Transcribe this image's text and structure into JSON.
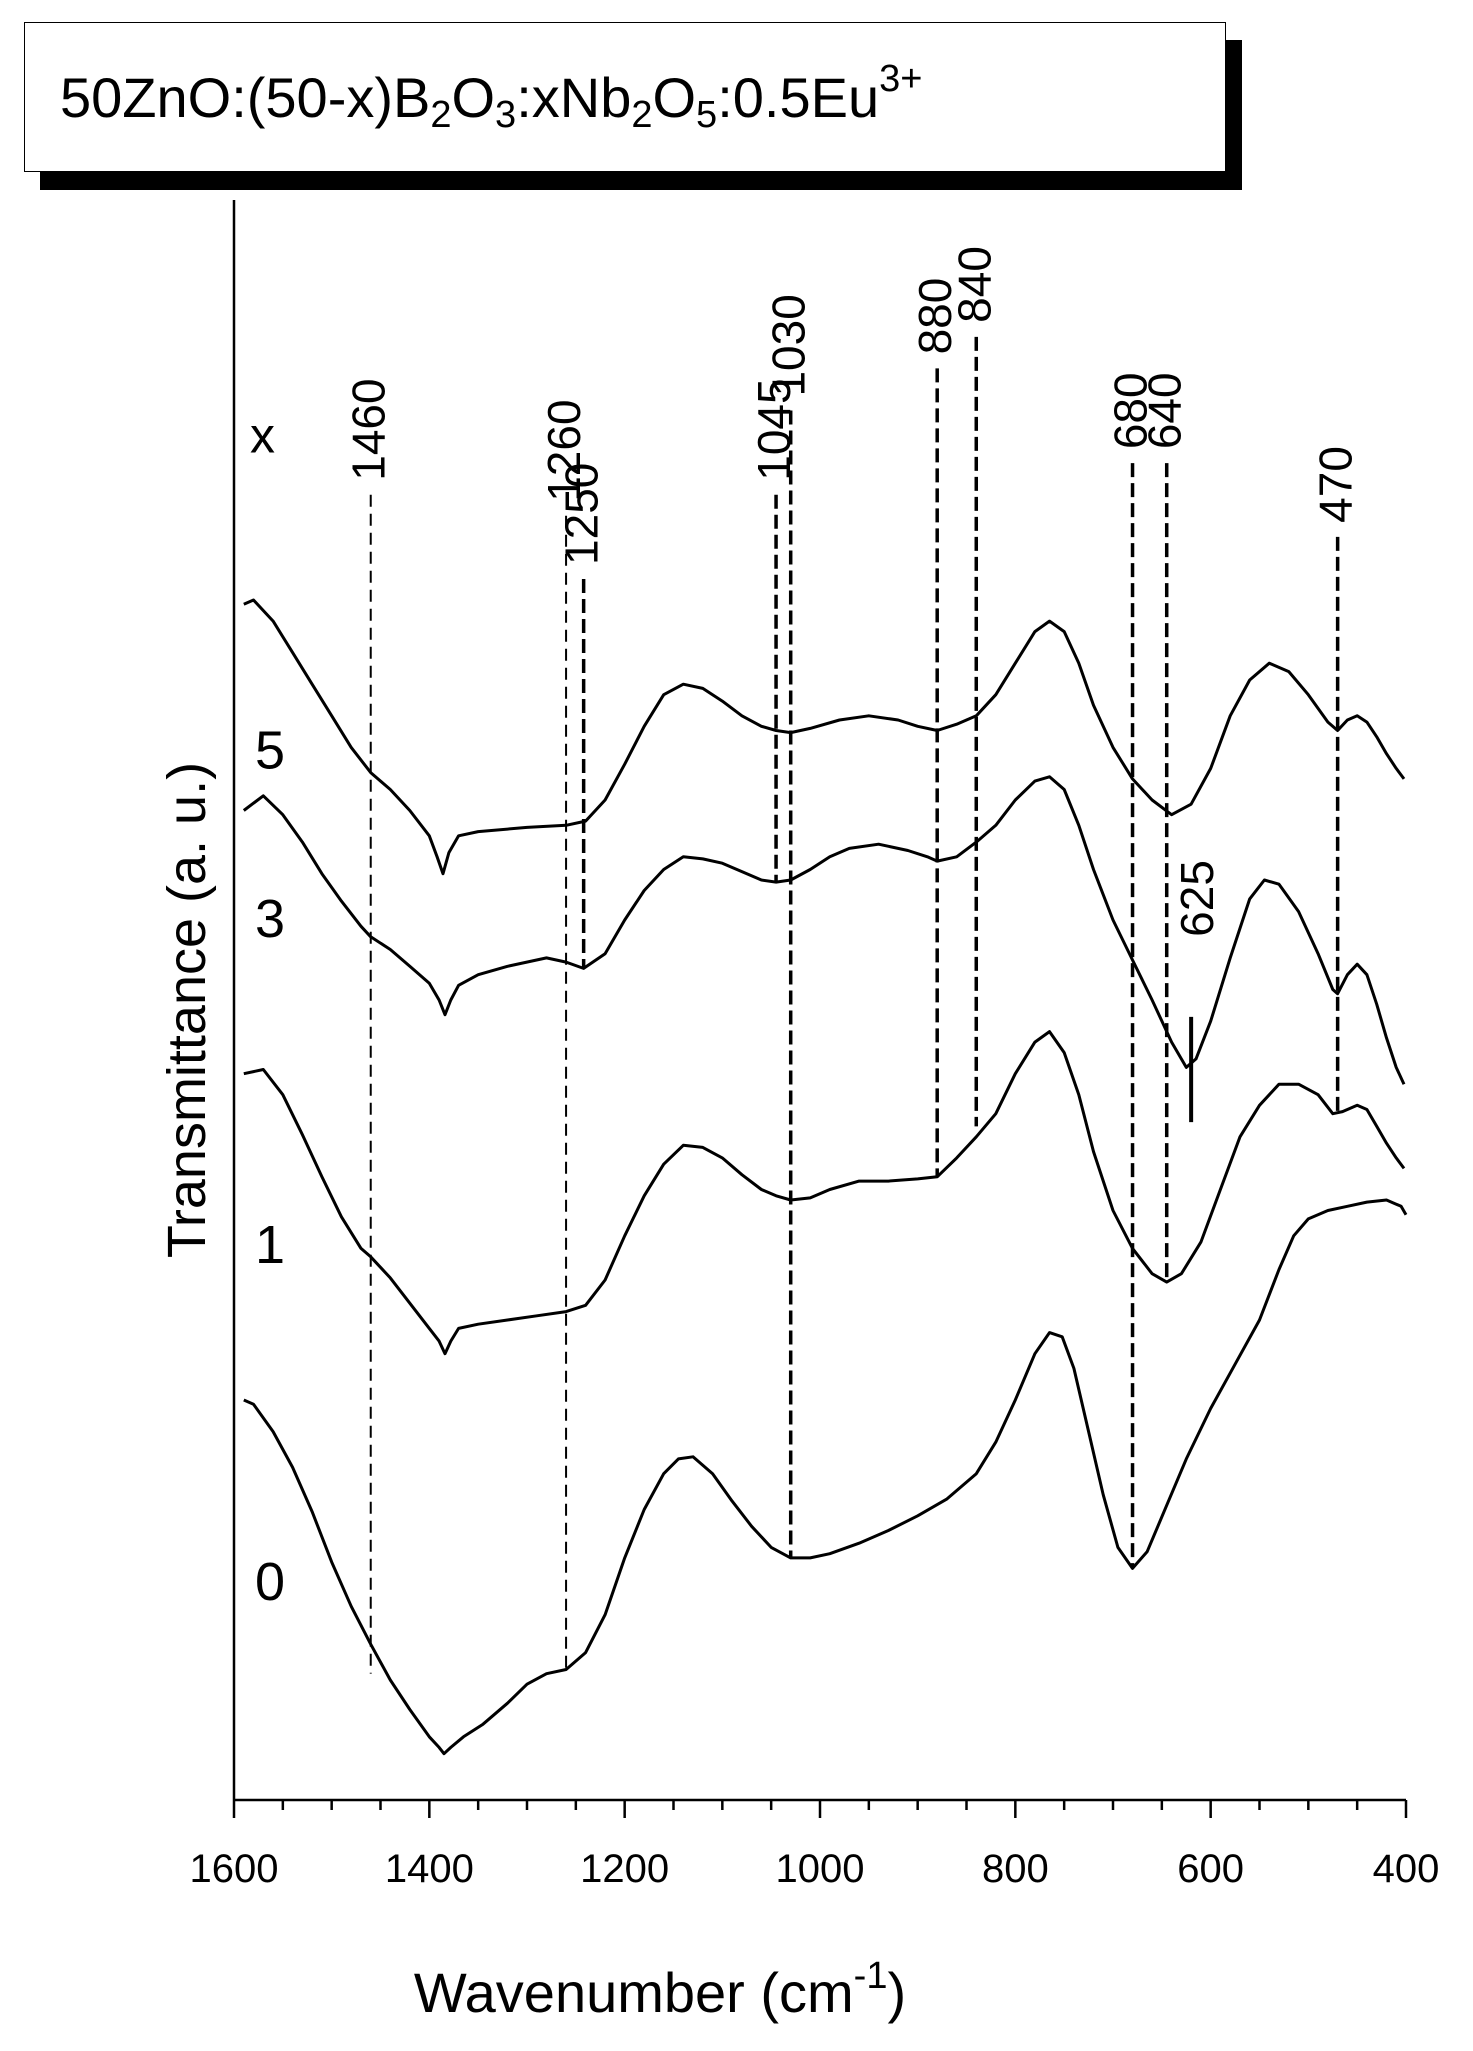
{
  "chart_data": {
    "type": "line",
    "title_parts": [
      {
        "t": "50ZnO:(50-x)B",
        "k": "n"
      },
      {
        "t": "2",
        "k": "sub"
      },
      {
        "t": "O",
        "k": "n"
      },
      {
        "t": "3",
        "k": "sub"
      },
      {
        "t": ":xNb",
        "k": "n"
      },
      {
        "t": "2",
        "k": "sub"
      },
      {
        "t": "O",
        "k": "n"
      },
      {
        "t": "5",
        "k": "sub"
      },
      {
        "t": ":0.5Eu",
        "k": "n"
      },
      {
        "t": "3+",
        "k": "sup"
      }
    ],
    "xlabel": "Wavenumber (cm",
    "xlabel_sup": "-1",
    "xlabel_close": ")",
    "ylabel": "Transmittance (a. u.)",
    "xlim": [
      1600,
      400
    ],
    "x_ticks": [
      1600,
      1400,
      1200,
      1000,
      800,
      600,
      400
    ],
    "legend_header": "x",
    "series": [
      {
        "name": "5",
        "points": [
          [
            1590,
            568
          ],
          [
            1580,
            570
          ],
          [
            1560,
            560
          ],
          [
            1540,
            545
          ],
          [
            1520,
            530
          ],
          [
            1500,
            515
          ],
          [
            1480,
            500
          ],
          [
            1460,
            488
          ],
          [
            1440,
            480
          ],
          [
            1420,
            470
          ],
          [
            1400,
            458
          ],
          [
            1392,
            448
          ],
          [
            1386,
            440
          ],
          [
            1380,
            450
          ],
          [
            1370,
            458
          ],
          [
            1350,
            460
          ],
          [
            1300,
            462
          ],
          [
            1260,
            463
          ],
          [
            1240,
            465
          ],
          [
            1220,
            475
          ],
          [
            1200,
            492
          ],
          [
            1180,
            510
          ],
          [
            1160,
            525
          ],
          [
            1140,
            530
          ],
          [
            1120,
            528
          ],
          [
            1100,
            522
          ],
          [
            1080,
            515
          ],
          [
            1060,
            510
          ],
          [
            1045,
            508
          ],
          [
            1030,
            507
          ],
          [
            1010,
            509
          ],
          [
            980,
            513
          ],
          [
            950,
            515
          ],
          [
            920,
            513
          ],
          [
            900,
            510
          ],
          [
            880,
            508
          ],
          [
            860,
            511
          ],
          [
            840,
            515
          ],
          [
            820,
            525
          ],
          [
            800,
            540
          ],
          [
            780,
            555
          ],
          [
            765,
            560
          ],
          [
            750,
            555
          ],
          [
            735,
            540
          ],
          [
            720,
            520
          ],
          [
            700,
            500
          ],
          [
            680,
            485
          ],
          [
            660,
            475
          ],
          [
            640,
            468
          ],
          [
            620,
            473
          ],
          [
            600,
            490
          ],
          [
            580,
            515
          ],
          [
            560,
            532
          ],
          [
            540,
            540
          ],
          [
            520,
            536
          ],
          [
            500,
            525
          ],
          [
            480,
            512
          ],
          [
            470,
            508
          ],
          [
            460,
            513
          ],
          [
            450,
            515
          ],
          [
            440,
            512
          ],
          [
            430,
            505
          ],
          [
            420,
            497
          ],
          [
            410,
            490
          ],
          [
            402,
            485
          ]
        ]
      },
      {
        "name": "3",
        "points": [
          [
            1590,
            470
          ],
          [
            1570,
            477
          ],
          [
            1550,
            468
          ],
          [
            1530,
            455
          ],
          [
            1510,
            440
          ],
          [
            1490,
            427
          ],
          [
            1470,
            415
          ],
          [
            1460,
            410
          ],
          [
            1440,
            404
          ],
          [
            1420,
            396
          ],
          [
            1400,
            388
          ],
          [
            1390,
            380
          ],
          [
            1384,
            373
          ],
          [
            1378,
            380
          ],
          [
            1370,
            387
          ],
          [
            1350,
            392
          ],
          [
            1320,
            396
          ],
          [
            1280,
            400
          ],
          [
            1260,
            398
          ],
          [
            1242,
            395
          ],
          [
            1220,
            402
          ],
          [
            1200,
            418
          ],
          [
            1180,
            432
          ],
          [
            1160,
            442
          ],
          [
            1140,
            448
          ],
          [
            1120,
            447
          ],
          [
            1100,
            445
          ],
          [
            1080,
            441
          ],
          [
            1060,
            437
          ],
          [
            1045,
            436
          ],
          [
            1030,
            437
          ],
          [
            1010,
            442
          ],
          [
            990,
            448
          ],
          [
            970,
            452
          ],
          [
            940,
            454
          ],
          [
            910,
            451
          ],
          [
            890,
            448
          ],
          [
            880,
            446
          ],
          [
            860,
            448
          ],
          [
            840,
            455
          ],
          [
            820,
            463
          ],
          [
            800,
            475
          ],
          [
            780,
            484
          ],
          [
            765,
            486
          ],
          [
            750,
            480
          ],
          [
            735,
            463
          ],
          [
            720,
            442
          ],
          [
            700,
            418
          ],
          [
            680,
            399
          ],
          [
            660,
            380
          ],
          [
            640,
            360
          ],
          [
            625,
            348
          ],
          [
            615,
            352
          ],
          [
            600,
            370
          ],
          [
            580,
            400
          ],
          [
            560,
            428
          ],
          [
            545,
            437
          ],
          [
            530,
            435
          ],
          [
            510,
            422
          ],
          [
            490,
            402
          ],
          [
            475,
            385
          ],
          [
            470,
            383
          ],
          [
            460,
            392
          ],
          [
            450,
            397
          ],
          [
            440,
            392
          ],
          [
            430,
            378
          ],
          [
            420,
            362
          ],
          [
            410,
            348
          ],
          [
            402,
            340
          ]
        ]
      },
      {
        "name": "1",
        "points": [
          [
            1590,
            345
          ],
          [
            1570,
            347
          ],
          [
            1550,
            335
          ],
          [
            1530,
            316
          ],
          [
            1510,
            296
          ],
          [
            1490,
            277
          ],
          [
            1470,
            262
          ],
          [
            1460,
            258
          ],
          [
            1440,
            248
          ],
          [
            1420,
            236
          ],
          [
            1400,
            224
          ],
          [
            1390,
            218
          ],
          [
            1384,
            212
          ],
          [
            1378,
            218
          ],
          [
            1370,
            224
          ],
          [
            1350,
            226
          ],
          [
            1320,
            228
          ],
          [
            1290,
            230
          ],
          [
            1260,
            232
          ],
          [
            1240,
            235
          ],
          [
            1220,
            247
          ],
          [
            1200,
            268
          ],
          [
            1180,
            287
          ],
          [
            1160,
            302
          ],
          [
            1140,
            311
          ],
          [
            1120,
            310
          ],
          [
            1100,
            305
          ],
          [
            1080,
            297
          ],
          [
            1060,
            290
          ],
          [
            1045,
            287
          ],
          [
            1030,
            285
          ],
          [
            1010,
            286
          ],
          [
            990,
            290
          ],
          [
            960,
            294
          ],
          [
            930,
            294
          ],
          [
            900,
            295
          ],
          [
            880,
            296
          ],
          [
            860,
            305
          ],
          [
            840,
            315
          ],
          [
            820,
            326
          ],
          [
            800,
            345
          ],
          [
            780,
            360
          ],
          [
            765,
            365
          ],
          [
            750,
            355
          ],
          [
            735,
            335
          ],
          [
            720,
            308
          ],
          [
            700,
            280
          ],
          [
            680,
            262
          ],
          [
            660,
            250
          ],
          [
            645,
            246
          ],
          [
            630,
            250
          ],
          [
            610,
            265
          ],
          [
            590,
            290
          ],
          [
            570,
            315
          ],
          [
            550,
            330
          ],
          [
            530,
            340
          ],
          [
            510,
            340
          ],
          [
            490,
            335
          ],
          [
            475,
            326
          ],
          [
            465,
            327
          ],
          [
            450,
            330
          ],
          [
            440,
            328
          ],
          [
            430,
            320
          ],
          [
            420,
            312
          ],
          [
            410,
            305
          ],
          [
            402,
            300
          ]
        ]
      },
      {
        "name": "0",
        "points": [
          [
            1590,
            190
          ],
          [
            1580,
            188
          ],
          [
            1560,
            175
          ],
          [
            1540,
            158
          ],
          [
            1520,
            137
          ],
          [
            1500,
            113
          ],
          [
            1480,
            92
          ],
          [
            1460,
            74
          ],
          [
            1440,
            57
          ],
          [
            1420,
            43
          ],
          [
            1400,
            30
          ],
          [
            1390,
            25
          ],
          [
            1385,
            22
          ],
          [
            1378,
            25
          ],
          [
            1365,
            30
          ],
          [
            1345,
            36
          ],
          [
            1320,
            46
          ],
          [
            1300,
            55
          ],
          [
            1280,
            60
          ],
          [
            1260,
            62
          ],
          [
            1240,
            70
          ],
          [
            1220,
            88
          ],
          [
            1200,
            115
          ],
          [
            1180,
            138
          ],
          [
            1160,
            155
          ],
          [
            1145,
            162
          ],
          [
            1130,
            163
          ],
          [
            1110,
            155
          ],
          [
            1090,
            142
          ],
          [
            1070,
            130
          ],
          [
            1050,
            120
          ],
          [
            1030,
            115
          ],
          [
            1010,
            115
          ],
          [
            990,
            117
          ],
          [
            960,
            122
          ],
          [
            930,
            128
          ],
          [
            900,
            135
          ],
          [
            870,
            143
          ],
          [
            840,
            155
          ],
          [
            820,
            170
          ],
          [
            800,
            190
          ],
          [
            780,
            212
          ],
          [
            765,
            222
          ],
          [
            752,
            220
          ],
          [
            740,
            205
          ],
          [
            725,
            175
          ],
          [
            710,
            145
          ],
          [
            695,
            120
          ],
          [
            680,
            110
          ],
          [
            665,
            118
          ],
          [
            645,
            140
          ],
          [
            625,
            162
          ],
          [
            600,
            186
          ],
          [
            575,
            207
          ],
          [
            550,
            228
          ],
          [
            530,
            252
          ],
          [
            515,
            268
          ],
          [
            500,
            276
          ],
          [
            480,
            280
          ],
          [
            460,
            282
          ],
          [
            440,
            284
          ],
          [
            420,
            285
          ],
          [
            405,
            282
          ],
          [
            400,
            278
          ]
        ]
      }
    ],
    "series_labels": [
      {
        "text": "5",
        "y": 490
      },
      {
        "text": "3",
        "y": 410
      },
      {
        "text": "1",
        "y": 255
      },
      {
        "text": "0",
        "y": 95
      }
    ],
    "reference_lines": [
      {
        "x": 1460,
        "label": "1460",
        "style": "thin-dash",
        "y_top": 620,
        "y_bot": 60
      },
      {
        "x": 1260,
        "label": "1260",
        "style": "thin-dash",
        "y_top": 610,
        "y_bot": 60
      },
      {
        "x": 1242,
        "label": "1250",
        "style": "bold-dash",
        "y_top": 580,
        "y_bot": 395
      },
      {
        "x": 1045,
        "label": "1045",
        "style": "bold-dash",
        "y_top": 620,
        "y_bot": 436
      },
      {
        "x": 1030,
        "label": "1030",
        "style": "bold-dash",
        "y_top": 660,
        "y_bot": 115
      },
      {
        "x": 880,
        "label": "880",
        "style": "bold-dash",
        "y_top": 680,
        "y_bot": 296
      },
      {
        "x": 840,
        "label": "840",
        "style": "bold-dash",
        "y_top": 695,
        "y_bot": 320
      },
      {
        "x": 680,
        "label": "680",
        "style": "bold-dash",
        "y_top": 635,
        "y_bot": 110
      },
      {
        "x": 645,
        "label": "640",
        "style": "bold-dash",
        "y_top": 635,
        "y_bot": 246
      },
      {
        "x": 470,
        "label": "470",
        "style": "bold-dash",
        "y_top": 600,
        "y_bot": 326
      }
    ],
    "marker": {
      "x": 620,
      "label": "625",
      "y_top": 372,
      "y_bot": 322
    },
    "y_range": [
      0,
      760
    ],
    "colors": {
      "line": "#000000",
      "background": "#ffffff"
    }
  }
}
